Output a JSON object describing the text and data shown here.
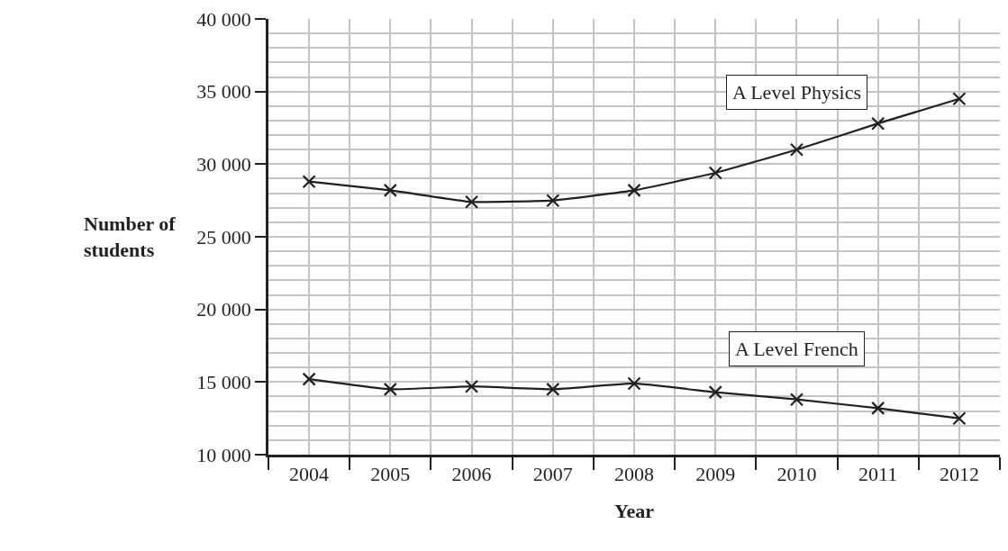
{
  "chart_data": {
    "type": "line",
    "xlabel": "Year",
    "ylabel": "Number of students",
    "x": [
      2004,
      2005,
      2006,
      2007,
      2008,
      2009,
      2010,
      2011,
      2012
    ],
    "series": [
      {
        "name": "A Level Physics",
        "color": "#231f20",
        "values": [
          28800,
          28200,
          27400,
          27500,
          28200,
          29400,
          31000,
          32800,
          34500
        ]
      },
      {
        "name": "A Level French",
        "color": "#231f20",
        "values": [
          15200,
          14500,
          14700,
          14500,
          14900,
          14300,
          13800,
          13200,
          12500
        ]
      }
    ],
    "xlim": [
      2003.5,
      2012.5
    ],
    "xticks": [
      {
        "value": 2003.5,
        "label": null
      },
      2004,
      {
        "value": 2004.5,
        "label": null
      },
      2005,
      {
        "value": 2005.5,
        "label": null
      },
      2006,
      {
        "value": 2006.5,
        "label": null
      },
      2007,
      {
        "value": 2007.5,
        "label": null
      },
      2008,
      {
        "value": 2008.5,
        "label": null
      },
      2009,
      {
        "value": 2009.5,
        "label": null
      },
      2010,
      {
        "value": 2010.5,
        "label": null
      },
      2011,
      {
        "value": 2011.5,
        "label": null
      },
      2012,
      {
        "value": 2012.5,
        "label": null
      }
    ],
    "ylim": [
      10000,
      40000
    ],
    "yticks": [
      {
        "value": 10000,
        "label": "10 000"
      },
      {
        "value": 11000,
        "label": null
      },
      {
        "value": 12000,
        "label": null
      },
      {
        "value": 13000,
        "label": null
      },
      {
        "value": 14000,
        "label": null
      },
      {
        "value": 15000,
        "label": "15 000"
      },
      {
        "value": 16000,
        "label": null
      },
      {
        "value": 17000,
        "label": null
      },
      {
        "value": 18000,
        "label": null
      },
      {
        "value": 19000,
        "label": null
      },
      {
        "value": 20000,
        "label": "20 000"
      },
      {
        "value": 21000,
        "label": null
      },
      {
        "value": 22000,
        "label": null
      },
      {
        "value": 23000,
        "label": null
      },
      {
        "value": 24000,
        "label": null
      },
      {
        "value": 25000,
        "label": "25 000"
      },
      {
        "value": 26000,
        "label": null
      },
      {
        "value": 27000,
        "label": null
      },
      {
        "value": 28000,
        "label": null
      },
      {
        "value": 29000,
        "label": null
      },
      {
        "value": 30000,
        "label": "30 000"
      },
      {
        "value": 31000,
        "label": null
      },
      {
        "value": 32000,
        "label": null
      },
      {
        "value": 33000,
        "label": null
      },
      {
        "value": 34000,
        "label": null
      },
      {
        "value": 35000,
        "label": "35 000"
      },
      {
        "value": 36000,
        "label": null
      },
      {
        "value": 37000,
        "label": null
      },
      {
        "value": 38000,
        "label": null
      },
      {
        "value": 39000,
        "label": null
      },
      {
        "value": 40000,
        "label": "40 000"
      }
    ],
    "grid": true,
    "legend": false,
    "marker": "cross",
    "line_style": "solid"
  }
}
